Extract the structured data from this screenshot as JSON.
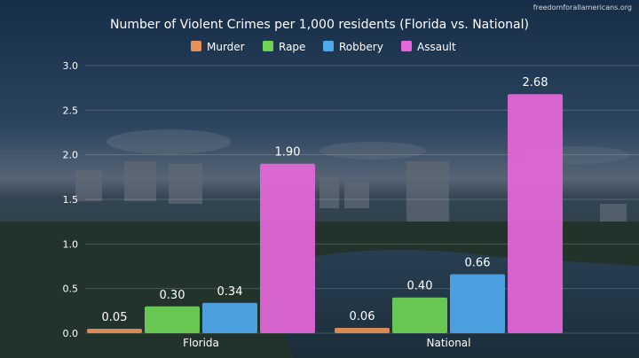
{
  "watermark": "freedomforallamericans.org",
  "chart_data": {
    "type": "bar",
    "title": "Number of Violent Crimes per 1,000 residents  (Florida vs. National)",
    "categories": [
      "Florida",
      "National"
    ],
    "series": [
      {
        "name": "Murder",
        "color": "#e8905a",
        "values": [
          0.05,
          0.06
        ],
        "labels": [
          "0.05",
          "0.06"
        ]
      },
      {
        "name": "Rape",
        "color": "#6fd454",
        "values": [
          0.3,
          0.4
        ],
        "labels": [
          "0.30",
          "0.40"
        ]
      },
      {
        "name": "Robbery",
        "color": "#4fa8ec",
        "values": [
          0.34,
          0.66
        ],
        "labels": [
          "0.34",
          "0.66"
        ]
      },
      {
        "name": "Assault",
        "color": "#e667d9",
        "values": [
          1.9,
          2.68
        ],
        "labels": [
          "1.90",
          "2.68"
        ]
      }
    ],
    "yticks": [
      "0.0",
      "0.5",
      "1.0",
      "1.5",
      "2.0",
      "2.5",
      "3.0"
    ],
    "ylim": [
      0,
      3.0
    ],
    "grid": true,
    "legend": "top-center",
    "background": "photo-of-waterfront-city-skyline"
  }
}
